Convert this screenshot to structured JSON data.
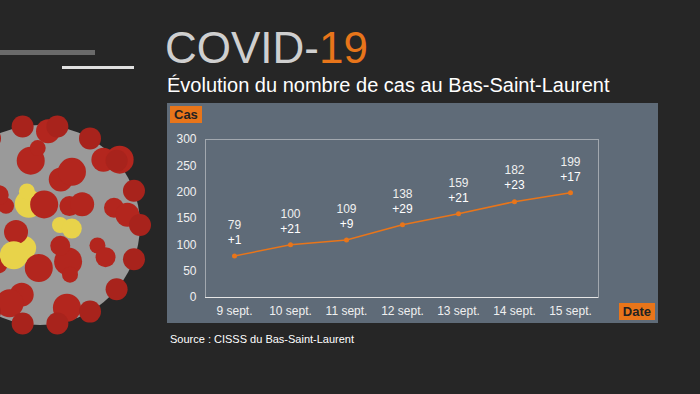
{
  "chart_data": {
    "type": "line",
    "title": "COVID-19",
    "subtitle": "Évolution du nombre de cas au Bas-Saint-Laurent",
    "categories": [
      "9 sept.",
      "10 sept.",
      "11 sept.",
      "12 sept.",
      "13 sept.",
      "14 sept.",
      "15 sept."
    ],
    "values": [
      79,
      100,
      109,
      138,
      159,
      182,
      199
    ],
    "annotations": [
      "+1",
      "+21",
      "+9",
      "+29",
      "+21",
      "+23",
      "+17"
    ],
    "color": "#e8751a",
    "marker": "circle",
    "x_label": "Date",
    "y_label": "Cas",
    "ylim": [
      0,
      300
    ],
    "yticks": [
      0,
      50,
      100,
      150,
      200,
      250,
      300
    ],
    "grid": false,
    "data_labels": true,
    "source": "Source : CISSS du Bas-Saint-Laurent"
  }
}
